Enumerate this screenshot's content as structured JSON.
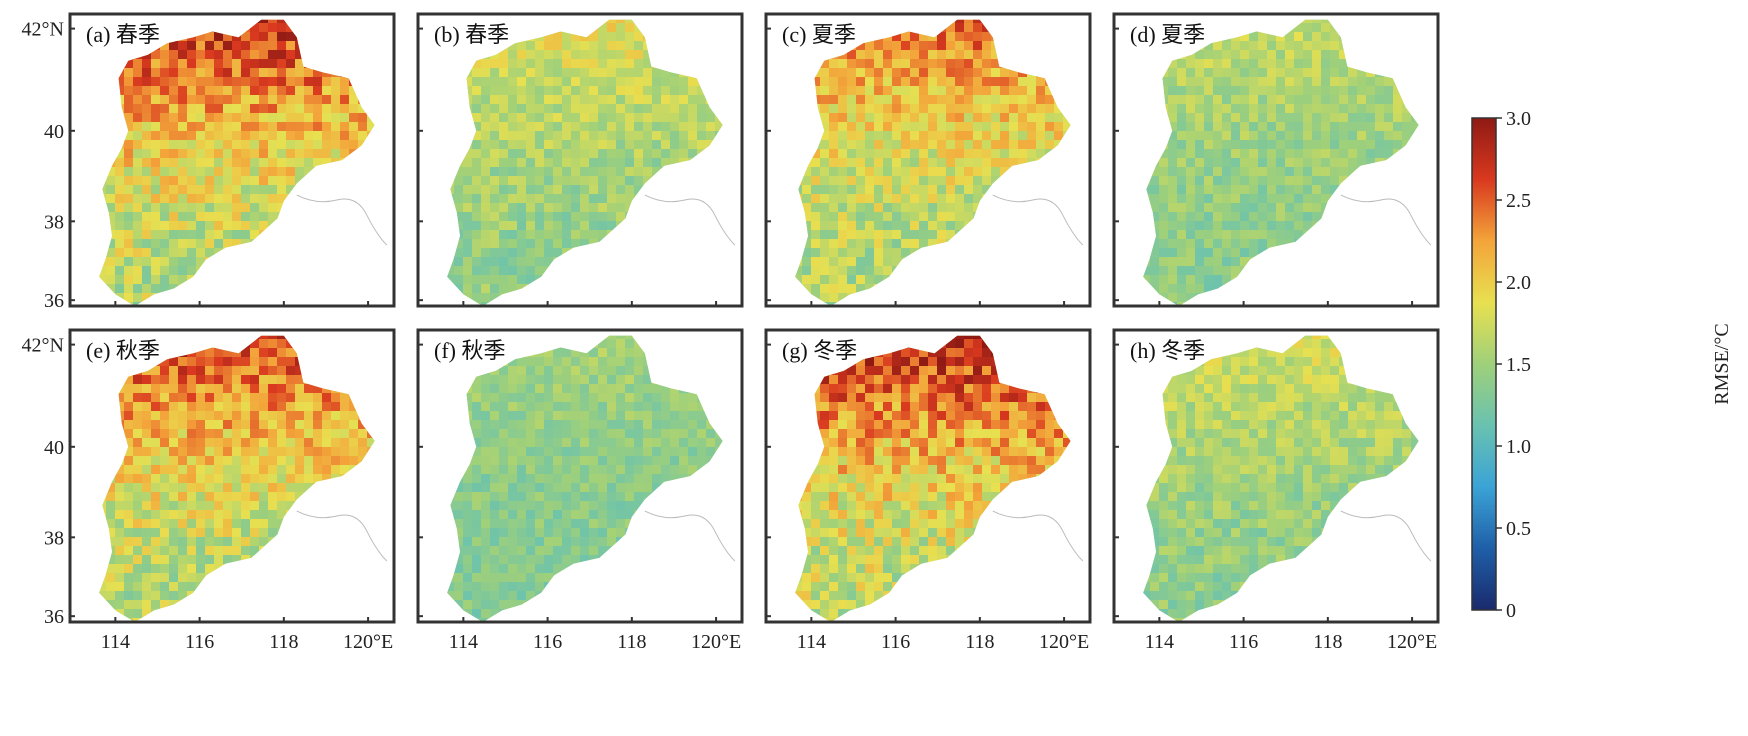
{
  "figure": {
    "panels": [
      {
        "label": "(a) 春季",
        "intensity": 0.85
      },
      {
        "label": "(b) 春季",
        "intensity": 0.35
      },
      {
        "label": "(c) 夏季",
        "intensity": 0.7
      },
      {
        "label": "(d) 夏季",
        "intensity": 0.25
      },
      {
        "label": "(e) 秋季",
        "intensity": 0.8
      },
      {
        "label": "(f) 秋季",
        "intensity": 0.15
      },
      {
        "label": "(g) 冬季",
        "intensity": 0.9
      },
      {
        "label": "(h) 冬季",
        "intensity": 0.3
      }
    ],
    "lat_ticks": [
      "42°N",
      "40",
      "38",
      "36"
    ],
    "lon_ticks": [
      "114",
      "116",
      "118",
      "120°E"
    ],
    "colorbar": {
      "title": "RMSE/°C",
      "ticks": [
        "3.0",
        "2.5",
        "2.0",
        "1.5",
        "1.0",
        "0.5",
        "0"
      ],
      "colors": [
        "#1a2a6c",
        "#1f5fa8",
        "#3ba3d6",
        "#69c2b0",
        "#9fd07a",
        "#e8e050",
        "#f3a43a",
        "#d9391f",
        "#8f1a14"
      ]
    }
  }
}
